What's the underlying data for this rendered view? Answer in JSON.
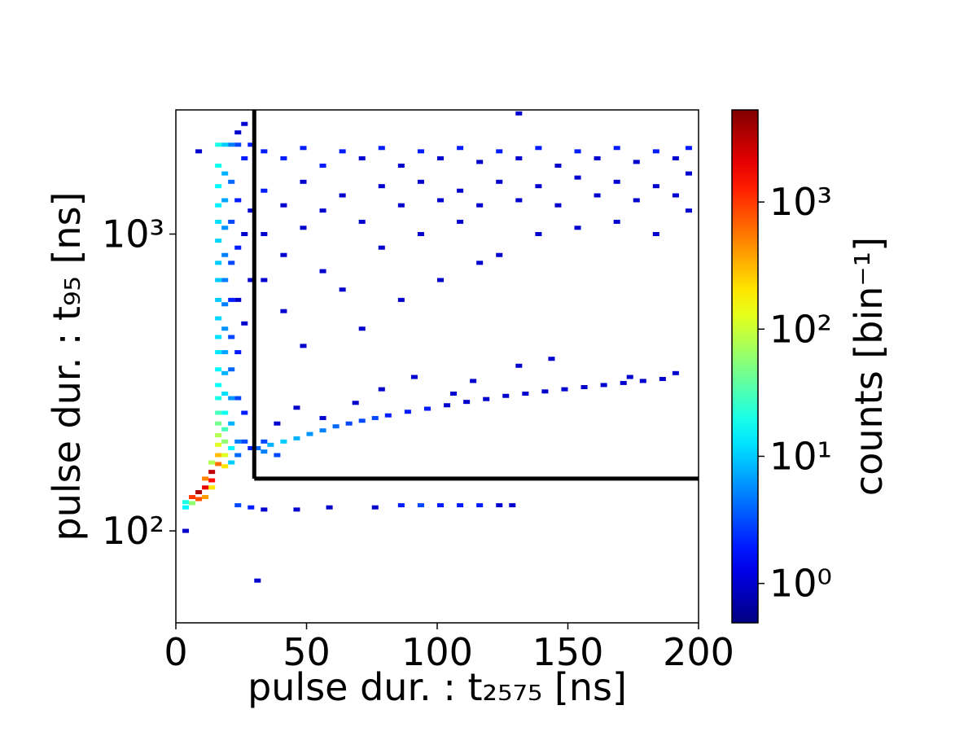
{
  "chart_data": {
    "type": "histogram2d",
    "xlabel": "pulse dur. : t₂₅₇₅ [ns]",
    "ylabel": "pulse dur. : t₉₅ [ns]",
    "colorbar_label": "counts [bin⁻¹]",
    "xlim": [
      0,
      200
    ],
    "xticks": [
      0,
      50,
      100,
      150,
      200
    ],
    "ylim": [
      49,
      2620
    ],
    "ylog": true,
    "yticks": [
      {
        "value": 100,
        "label": "10²"
      },
      {
        "value": 1000,
        "label": "10³"
      }
    ],
    "clim": [
      0.49,
      5300
    ],
    "clog": true,
    "colormap": "jet",
    "cticks": [
      {
        "value": 1,
        "label": "10⁰"
      },
      {
        "value": 10,
        "label": "10¹"
      },
      {
        "value": 100,
        "label": "10²"
      },
      {
        "value": 1000,
        "label": "10³"
      }
    ],
    "cut": {
      "x": 30,
      "y": 150,
      "color": "#000000"
    },
    "cells": [
      {
        "x": 16.25,
        "y": 2000,
        "count": 20
      },
      {
        "x": 16.25,
        "y": 1700,
        "count": 18
      },
      {
        "x": 16.25,
        "y": 1450,
        "count": 15
      },
      {
        "x": 16.25,
        "y": 1250,
        "count": 14
      },
      {
        "x": 16.25,
        "y": 1100,
        "count": 12
      },
      {
        "x": 16.25,
        "y": 950,
        "count": 11
      },
      {
        "x": 16.25,
        "y": 800,
        "count": 10
      },
      {
        "x": 16.25,
        "y": 700,
        "count": 10
      },
      {
        "x": 16.25,
        "y": 600,
        "count": 10
      },
      {
        "x": 16.25,
        "y": 520,
        "count": 11
      },
      {
        "x": 16.25,
        "y": 450,
        "count": 12
      },
      {
        "x": 16.25,
        "y": 400,
        "count": 13
      },
      {
        "x": 16.25,
        "y": 350,
        "count": 15
      },
      {
        "x": 16.25,
        "y": 310,
        "count": 17
      },
      {
        "x": 16.25,
        "y": 280,
        "count": 20
      },
      {
        "x": 16.25,
        "y": 250,
        "count": 30
      },
      {
        "x": 16.25,
        "y": 230,
        "count": 45
      },
      {
        "x": 16.25,
        "y": 210,
        "count": 80
      },
      {
        "x": 16.25,
        "y": 195,
        "count": 120
      },
      {
        "x": 16.25,
        "y": 180,
        "count": 300
      },
      {
        "x": 16.25,
        "y": 168,
        "count": 600
      },
      {
        "x": 18.75,
        "y": 2000,
        "count": 10
      },
      {
        "x": 18.75,
        "y": 1600,
        "count": 8
      },
      {
        "x": 18.75,
        "y": 1300,
        "count": 7
      },
      {
        "x": 18.75,
        "y": 1050,
        "count": 6
      },
      {
        "x": 18.75,
        "y": 850,
        "count": 5
      },
      {
        "x": 18.75,
        "y": 700,
        "count": 5
      },
      {
        "x": 18.75,
        "y": 580,
        "count": 5
      },
      {
        "x": 18.75,
        "y": 480,
        "count": 6
      },
      {
        "x": 18.75,
        "y": 400,
        "count": 7
      },
      {
        "x": 18.75,
        "y": 340,
        "count": 8
      },
      {
        "x": 18.75,
        "y": 290,
        "count": 12
      },
      {
        "x": 18.75,
        "y": 250,
        "count": 18
      },
      {
        "x": 18.75,
        "y": 220,
        "count": 30
      },
      {
        "x": 18.75,
        "y": 200,
        "count": 60
      },
      {
        "x": 18.75,
        "y": 180,
        "count": 120
      },
      {
        "x": 18.75,
        "y": 165,
        "count": 200
      },
      {
        "x": 13.75,
        "y": 170,
        "count": 80
      },
      {
        "x": 13.75,
        "y": 158,
        "count": 3000
      },
      {
        "x": 13.75,
        "y": 148,
        "count": 1500
      },
      {
        "x": 13.75,
        "y": 140,
        "count": 200
      },
      {
        "x": 11.25,
        "y": 150,
        "count": 500
      },
      {
        "x": 11.25,
        "y": 140,
        "count": 2000
      },
      {
        "x": 11.25,
        "y": 130,
        "count": 400
      },
      {
        "x": 8.75,
        "y": 135,
        "count": 3500
      },
      {
        "x": 8.75,
        "y": 128,
        "count": 800
      },
      {
        "x": 6.25,
        "y": 130,
        "count": 1000
      },
      {
        "x": 6.25,
        "y": 124,
        "count": 60
      },
      {
        "x": 3.75,
        "y": 125,
        "count": 20
      },
      {
        "x": 3.75,
        "y": 120,
        "count": 15
      },
      {
        "x": 3.75,
        "y": 100,
        "count": 1
      },
      {
        "x": 21.25,
        "y": 2000,
        "count": 5
      },
      {
        "x": 21.25,
        "y": 1500,
        "count": 4
      },
      {
        "x": 21.25,
        "y": 1100,
        "count": 3
      },
      {
        "x": 21.25,
        "y": 800,
        "count": 3
      },
      {
        "x": 21.25,
        "y": 600,
        "count": 2
      },
      {
        "x": 21.25,
        "y": 450,
        "count": 3
      },
      {
        "x": 21.25,
        "y": 350,
        "count": 4
      },
      {
        "x": 21.25,
        "y": 280,
        "count": 6
      },
      {
        "x": 21.25,
        "y": 230,
        "count": 8
      },
      {
        "x": 21.25,
        "y": 190,
        "count": 15
      },
      {
        "x": 21.25,
        "y": 170,
        "count": 10
      },
      {
        "x": 23.75,
        "y": 2000,
        "count": 3
      },
      {
        "x": 23.75,
        "y": 1300,
        "count": 2
      },
      {
        "x": 23.75,
        "y": 900,
        "count": 2
      },
      {
        "x": 23.75,
        "y": 600,
        "count": 1
      },
      {
        "x": 23.75,
        "y": 400,
        "count": 2
      },
      {
        "x": 23.75,
        "y": 280,
        "count": 3
      },
      {
        "x": 23.75,
        "y": 200,
        "count": 5
      },
      {
        "x": 23.75,
        "y": 180,
        "count": 4
      },
      {
        "x": 23.75,
        "y": 2200,
        "count": 1
      },
      {
        "x": 26.25,
        "y": 1800,
        "count": 2
      },
      {
        "x": 26.25,
        "y": 1000,
        "count": 1
      },
      {
        "x": 26.25,
        "y": 500,
        "count": 1
      },
      {
        "x": 26.25,
        "y": 250,
        "count": 2
      },
      {
        "x": 26.25,
        "y": 200,
        "count": 3
      },
      {
        "x": 26.25,
        "y": 2350,
        "count": 1
      },
      {
        "x": 28.75,
        "y": 2000,
        "count": 2
      },
      {
        "x": 28.75,
        "y": 1200,
        "count": 1
      },
      {
        "x": 28.75,
        "y": 700,
        "count": 1
      },
      {
        "x": 28.75,
        "y": 190,
        "count": 2
      },
      {
        "x": 8.75,
        "y": 1900,
        "count": 1
      },
      {
        "x": 33.75,
        "y": 1900,
        "count": 2
      },
      {
        "x": 33.75,
        "y": 1400,
        "count": 2
      },
      {
        "x": 33.75,
        "y": 1000,
        "count": 1
      },
      {
        "x": 33.75,
        "y": 700,
        "count": 1
      },
      {
        "x": 41.25,
        "y": 1800,
        "count": 2
      },
      {
        "x": 41.25,
        "y": 1250,
        "count": 1
      },
      {
        "x": 41.25,
        "y": 850,
        "count": 1
      },
      {
        "x": 41.25,
        "y": 550,
        "count": 1
      },
      {
        "x": 48.75,
        "y": 1950,
        "count": 2
      },
      {
        "x": 48.75,
        "y": 1500,
        "count": 1
      },
      {
        "x": 48.75,
        "y": 1050,
        "count": 1
      },
      {
        "x": 48.75,
        "y": 420,
        "count": 1
      },
      {
        "x": 56.25,
        "y": 1700,
        "count": 2
      },
      {
        "x": 56.25,
        "y": 1200,
        "count": 1
      },
      {
        "x": 56.25,
        "y": 750,
        "count": 1
      },
      {
        "x": 63.75,
        "y": 1900,
        "count": 2
      },
      {
        "x": 63.75,
        "y": 1350,
        "count": 1
      },
      {
        "x": 63.75,
        "y": 650,
        "count": 1
      },
      {
        "x": 71.25,
        "y": 1800,
        "count": 1
      },
      {
        "x": 71.25,
        "y": 1100,
        "count": 1
      },
      {
        "x": 71.25,
        "y": 480,
        "count": 1
      },
      {
        "x": 78.75,
        "y": 1950,
        "count": 2
      },
      {
        "x": 78.75,
        "y": 1450,
        "count": 1
      },
      {
        "x": 78.75,
        "y": 900,
        "count": 1
      },
      {
        "x": 86.25,
        "y": 1700,
        "count": 1
      },
      {
        "x": 86.25,
        "y": 1250,
        "count": 1
      },
      {
        "x": 86.25,
        "y": 600,
        "count": 1
      },
      {
        "x": 93.75,
        "y": 1900,
        "count": 2
      },
      {
        "x": 93.75,
        "y": 1500,
        "count": 1
      },
      {
        "x": 93.75,
        "y": 1000,
        "count": 1
      },
      {
        "x": 101.25,
        "y": 1800,
        "count": 1
      },
      {
        "x": 101.25,
        "y": 1300,
        "count": 1
      },
      {
        "x": 101.25,
        "y": 700,
        "count": 1
      },
      {
        "x": 108.75,
        "y": 1950,
        "count": 2
      },
      {
        "x": 108.75,
        "y": 1400,
        "count": 1
      },
      {
        "x": 108.75,
        "y": 1100,
        "count": 1
      },
      {
        "x": 116.25,
        "y": 1750,
        "count": 1
      },
      {
        "x": 116.25,
        "y": 1250,
        "count": 1
      },
      {
        "x": 116.25,
        "y": 800,
        "count": 1
      },
      {
        "x": 123.75,
        "y": 1900,
        "count": 2
      },
      {
        "x": 123.75,
        "y": 1500,
        "count": 1
      },
      {
        "x": 123.75,
        "y": 850,
        "count": 1
      },
      {
        "x": 131.25,
        "y": 1800,
        "count": 1
      },
      {
        "x": 131.25,
        "y": 1300,
        "count": 1
      },
      {
        "x": 131.25,
        "y": 2550,
        "count": 1
      },
      {
        "x": 138.75,
        "y": 1950,
        "count": 2
      },
      {
        "x": 138.75,
        "y": 1450,
        "count": 1
      },
      {
        "x": 138.75,
        "y": 1000,
        "count": 1
      },
      {
        "x": 146.25,
        "y": 1700,
        "count": 1
      },
      {
        "x": 146.25,
        "y": 1250,
        "count": 1
      },
      {
        "x": 153.75,
        "y": 1900,
        "count": 2
      },
      {
        "x": 153.75,
        "y": 1550,
        "count": 1
      },
      {
        "x": 153.75,
        "y": 1050,
        "count": 1
      },
      {
        "x": 161.25,
        "y": 1800,
        "count": 1
      },
      {
        "x": 161.25,
        "y": 1350,
        "count": 1
      },
      {
        "x": 168.75,
        "y": 1950,
        "count": 2
      },
      {
        "x": 168.75,
        "y": 1500,
        "count": 1
      },
      {
        "x": 168.75,
        "y": 1100,
        "count": 1
      },
      {
        "x": 176.25,
        "y": 1750,
        "count": 1
      },
      {
        "x": 176.25,
        "y": 1300,
        "count": 1
      },
      {
        "x": 183.75,
        "y": 1900,
        "count": 2
      },
      {
        "x": 183.75,
        "y": 1450,
        "count": 1
      },
      {
        "x": 183.75,
        "y": 1000,
        "count": 1
      },
      {
        "x": 191.25,
        "y": 1800,
        "count": 1
      },
      {
        "x": 191.25,
        "y": 1350,
        "count": 1
      },
      {
        "x": 196.25,
        "y": 1950,
        "count": 2
      },
      {
        "x": 196.25,
        "y": 1600,
        "count": 1
      },
      {
        "x": 196.25,
        "y": 1200,
        "count": 1
      },
      {
        "x": 31.25,
        "y": 190,
        "count": 4
      },
      {
        "x": 33.75,
        "y": 185,
        "count": 5
      },
      {
        "x": 33.75,
        "y": 200,
        "count": 3
      },
      {
        "x": 36.25,
        "y": 195,
        "count": 8
      },
      {
        "x": 38.75,
        "y": 180,
        "count": 3
      },
      {
        "x": 41.25,
        "y": 200,
        "count": 10
      },
      {
        "x": 46.25,
        "y": 205,
        "count": 8
      },
      {
        "x": 51.25,
        "y": 212,
        "count": 6
      },
      {
        "x": 56.25,
        "y": 218,
        "count": 5
      },
      {
        "x": 61.25,
        "y": 225,
        "count": 4
      },
      {
        "x": 66.25,
        "y": 230,
        "count": 3
      },
      {
        "x": 71.25,
        "y": 235,
        "count": 3
      },
      {
        "x": 76.25,
        "y": 240,
        "count": 3
      },
      {
        "x": 81.25,
        "y": 245,
        "count": 2
      },
      {
        "x": 88.75,
        "y": 252,
        "count": 2
      },
      {
        "x": 96.25,
        "y": 258,
        "count": 2
      },
      {
        "x": 103.75,
        "y": 265,
        "count": 1
      },
      {
        "x": 111.25,
        "y": 272,
        "count": 1
      },
      {
        "x": 118.75,
        "y": 278,
        "count": 1
      },
      {
        "x": 126.25,
        "y": 285,
        "count": 1
      },
      {
        "x": 133.75,
        "y": 290,
        "count": 1
      },
      {
        "x": 141.25,
        "y": 295,
        "count": 1
      },
      {
        "x": 148.75,
        "y": 300,
        "count": 1
      },
      {
        "x": 156.25,
        "y": 305,
        "count": 1
      },
      {
        "x": 163.75,
        "y": 310,
        "count": 1
      },
      {
        "x": 171.25,
        "y": 315,
        "count": 1
      },
      {
        "x": 178.75,
        "y": 320,
        "count": 1
      },
      {
        "x": 186.25,
        "y": 325,
        "count": 1
      },
      {
        "x": 38.75,
        "y": 230,
        "count": 1
      },
      {
        "x": 46.25,
        "y": 260,
        "count": 1
      },
      {
        "x": 56.25,
        "y": 240,
        "count": 1
      },
      {
        "x": 68.75,
        "y": 270,
        "count": 1
      },
      {
        "x": 78.75,
        "y": 300,
        "count": 1
      },
      {
        "x": 91.25,
        "y": 330,
        "count": 1
      },
      {
        "x": 106.25,
        "y": 290,
        "count": 1
      },
      {
        "x": 113.75,
        "y": 320,
        "count": 1
      },
      {
        "x": 131.25,
        "y": 360,
        "count": 1
      },
      {
        "x": 143.75,
        "y": 380,
        "count": 1
      },
      {
        "x": 173.75,
        "y": 330,
        "count": 1
      },
      {
        "x": 191.25,
        "y": 340,
        "count": 1
      },
      {
        "x": 23.75,
        "y": 122,
        "count": 3
      },
      {
        "x": 28.75,
        "y": 120,
        "count": 2
      },
      {
        "x": 33.75,
        "y": 118,
        "count": 1
      },
      {
        "x": 46.25,
        "y": 118,
        "count": 1
      },
      {
        "x": 58.75,
        "y": 120,
        "count": 1
      },
      {
        "x": 76.25,
        "y": 120,
        "count": 1
      },
      {
        "x": 86.25,
        "y": 122,
        "count": 2
      },
      {
        "x": 93.75,
        "y": 122,
        "count": 3
      },
      {
        "x": 101.25,
        "y": 122,
        "count": 2
      },
      {
        "x": 108.75,
        "y": 122,
        "count": 2
      },
      {
        "x": 116.25,
        "y": 122,
        "count": 2
      },
      {
        "x": 123.75,
        "y": 122,
        "count": 1
      },
      {
        "x": 128.75,
        "y": 122,
        "count": 1
      },
      {
        "x": 31.25,
        "y": 68,
        "count": 1
      }
    ]
  }
}
